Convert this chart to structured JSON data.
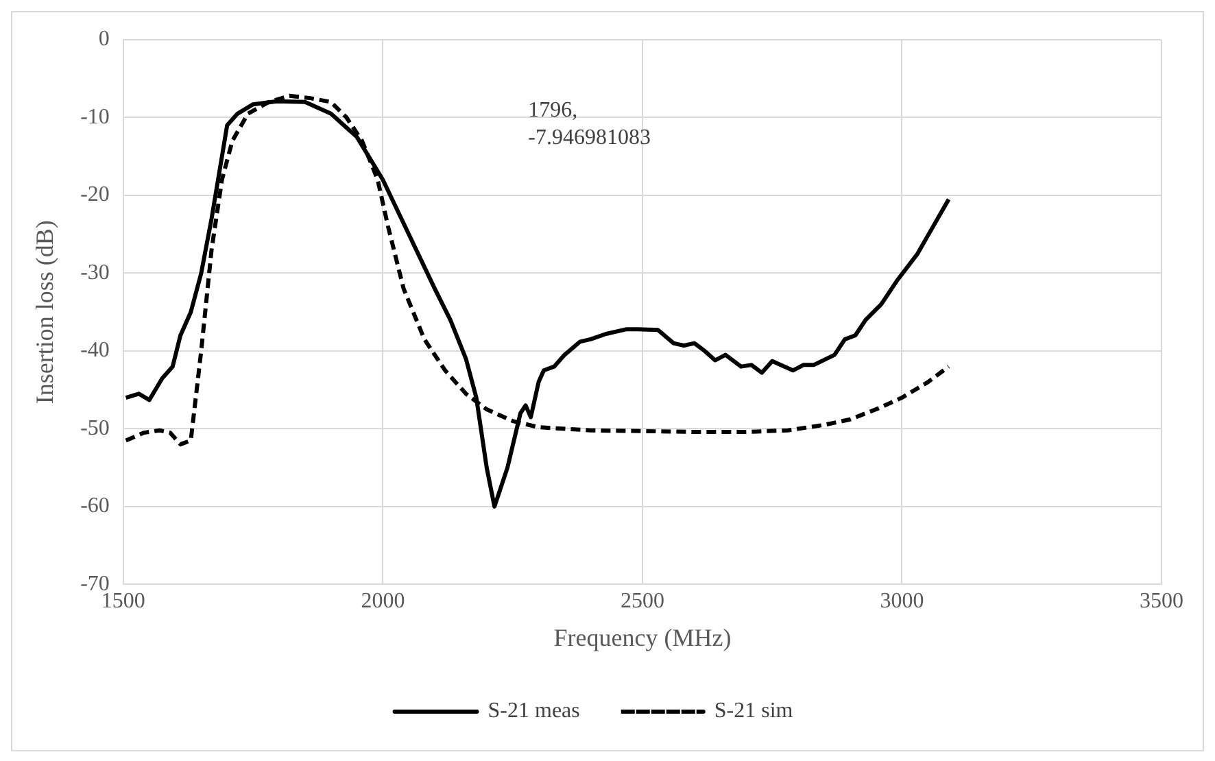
{
  "chart_data": {
    "type": "line",
    "xlabel": "Frequency (MHz)",
    "ylabel": "Insertion loss (dB)",
    "xlim": [
      1500,
      3500
    ],
    "xticks": [
      1500,
      2000,
      2500,
      3000,
      3500
    ],
    "ylim": [
      -70,
      0
    ],
    "yticks": [
      -70,
      -60,
      -50,
      -40,
      -30,
      -20,
      -10,
      0
    ],
    "grid": true,
    "legend": "bottom",
    "marker": "none",
    "annotations": [
      "1796,\n-7.946981083"
    ],
    "series": [
      {
        "name": "S-21 meas",
        "color": "#000000",
        "line_style": "solid",
        "x": [
          1505,
          1530,
          1550,
          1575,
          1595,
          1610,
          1630,
          1650,
          1670,
          1690,
          1700,
          1720,
          1750,
          1796,
          1850,
          1900,
          1950,
          2000,
          2050,
          2100,
          2130,
          2160,
          2180,
          2200,
          2215,
          2240,
          2265,
          2275,
          2285,
          2300,
          2310,
          2330,
          2350,
          2380,
          2400,
          2430,
          2470,
          2490,
          2530,
          2560,
          2580,
          2600,
          2620,
          2640,
          2660,
          2690,
          2710,
          2730,
          2750,
          2790,
          2810,
          2830,
          2870,
          2890,
          2910,
          2930,
          2960,
          2990,
          3030,
          3060,
          3090
        ],
        "values": [
          -46,
          -45.5,
          -46.3,
          -43.5,
          -42,
          -38,
          -35,
          -30,
          -23,
          -15,
          -11,
          -9.5,
          -8.3,
          -7.9,
          -8,
          -9.5,
          -12.5,
          -18,
          -25,
          -32,
          -36,
          -41,
          -46,
          -55,
          -60,
          -55,
          -48,
          -47,
          -48.5,
          -44,
          -42.5,
          -42,
          -40.5,
          -38.8,
          -38.5,
          -37.8,
          -37.2,
          -37.2,
          -37.3,
          -39,
          -39.3,
          -39,
          -40,
          -41.2,
          -40.5,
          -42,
          -41.8,
          -42.8,
          -41.3,
          -42.5,
          -41.8,
          -41.8,
          -40.5,
          -38.5,
          -38,
          -36,
          -34,
          -31,
          -27.5,
          -24,
          -20.5
        ]
      },
      {
        "name": "S-21 sim",
        "color": "#000000",
        "line_style": "dashed",
        "x": [
          1505,
          1540,
          1570,
          1590,
          1610,
          1630,
          1650,
          1670,
          1690,
          1710,
          1740,
          1780,
          1820,
          1860,
          1900,
          1930,
          1960,
          1990,
          2010,
          2040,
          2080,
          2120,
          2160,
          2200,
          2250,
          2300,
          2400,
          2500,
          2600,
          2700,
          2780,
          2850,
          2900,
          2950,
          3000,
          3050,
          3090
        ],
        "values": [
          -51.5,
          -50.5,
          -50.2,
          -50.5,
          -52,
          -51.5,
          -40,
          -27,
          -18,
          -13,
          -9.5,
          -8,
          -7.2,
          -7.5,
          -8,
          -10,
          -13,
          -18,
          -24,
          -32,
          -38.5,
          -42.5,
          -45.5,
          -47.5,
          -49,
          -49.8,
          -50.2,
          -50.3,
          -50.4,
          -50.4,
          -50.2,
          -49.5,
          -48.8,
          -47.5,
          -46,
          -44,
          -42
        ]
      }
    ]
  }
}
